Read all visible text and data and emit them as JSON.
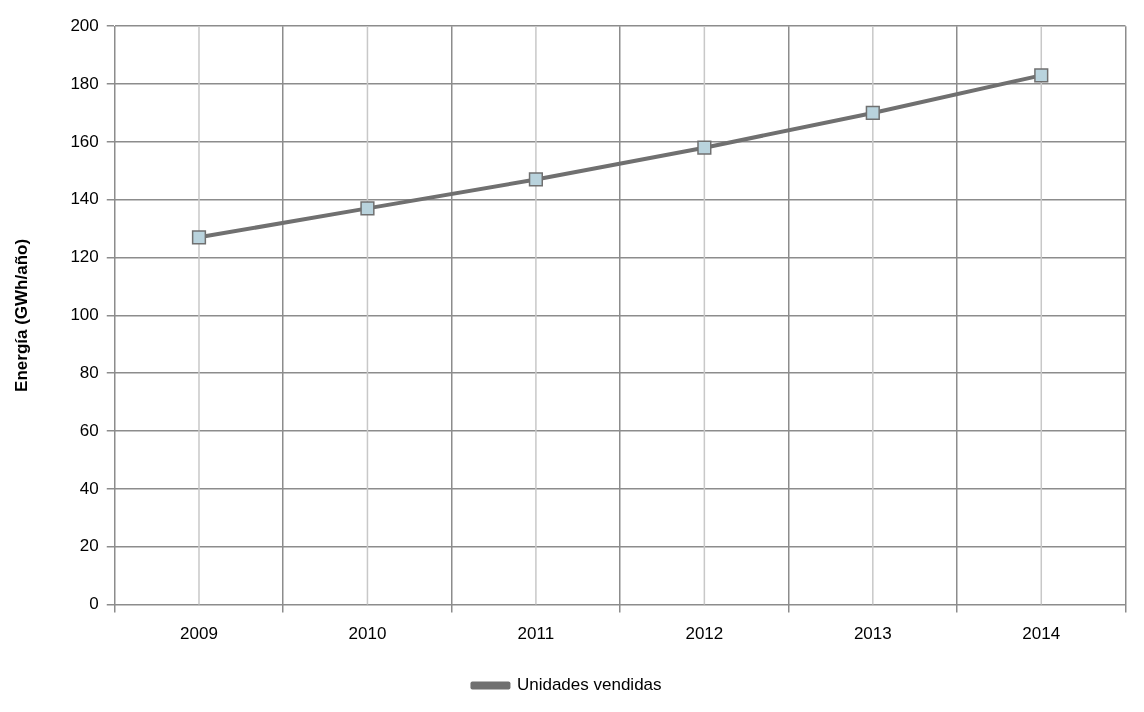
{
  "chart_data": {
    "type": "line",
    "ylabel": "Energía (GWh/año)",
    "categories": [
      "2009",
      "2010",
      "2011",
      "2012",
      "2013",
      "2014"
    ],
    "series": [
      {
        "name": "Unidades vendidas",
        "color": "#707070",
        "values": [
          127,
          137,
          147,
          158,
          170,
          183
        ]
      }
    ],
    "ylim": [
      0,
      200
    ],
    "yticks": [
      0,
      20,
      40,
      60,
      80,
      100,
      120,
      140,
      160,
      180,
      200
    ],
    "grid": true,
    "legend": "bottom",
    "marker": "square",
    "line_style": "solid"
  }
}
